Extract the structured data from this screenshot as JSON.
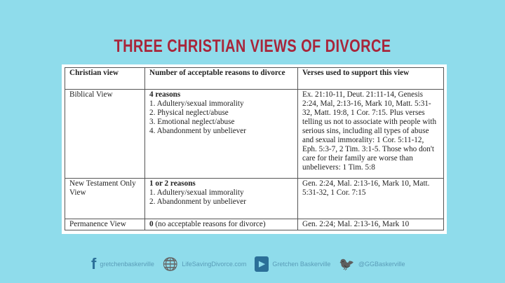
{
  "title": "THREE CHRISTIAN VIEWS OF DIVORCE",
  "table": {
    "headers": [
      "Christian view",
      "Number of acceptable reasons to divorce",
      "Verses used to support this view"
    ],
    "rows": [
      {
        "view": "Biblical View",
        "count": "4 reasons",
        "count_suffix": "",
        "reasons": [
          "1. Adultery/sexual immorality",
          "2. Physical neglect/abuse",
          "3. Emotional neglect/abuse",
          "4. Abandonment by unbeliever"
        ],
        "verses": "Ex. 21:10-11, Deut. 21:11-14, Genesis 2:24, Mal, 2:13-16, Mark 10, Matt. 5:31-32, Matt. 19:8, 1 Cor. 7:15. Plus verses telling us not to associate with people with serious sins, including all types of abuse and sexual immorality: 1 Cor. 5:11-12, Eph. 5:3-7, 2 Tim. 3:1-5. Those who don't care for their family are worse than unbelievers: 1 Tim. 5:8"
      },
      {
        "view": "New Testament Only View",
        "count": "1 or 2 reasons",
        "count_suffix": "",
        "reasons": [
          "1. Adultery/sexual immorality",
          "2. Abandonment by unbeliever"
        ],
        "verses": "Gen. 2:24, Mal. 2:13-16, Mark 10, Matt. 5:31-32, 1 Cor. 7:15"
      },
      {
        "view": "Permanence View",
        "count": "0",
        "count_suffix": " (no acceptable reasons for divorce)",
        "reasons": [],
        "verses": "Gen. 2:24; Mal. 2:13-16, Mark 10"
      }
    ]
  },
  "footer": [
    {
      "icon": "facebook-icon",
      "glyph": "f",
      "label": "gretchenbaskerville"
    },
    {
      "icon": "globe-icon",
      "glyph": "🌐",
      "label": "LifeSavingDivorce.com"
    },
    {
      "icon": "youtube-icon",
      "glyph": "▶",
      "label": "Gretchen Baskerville"
    },
    {
      "icon": "twitter-icon",
      "glyph": "🐦",
      "label": "@GGBaskerville"
    }
  ],
  "colors": {
    "background": "#8fdceb",
    "title": "#a8253a",
    "icon": "#2b6f98"
  }
}
